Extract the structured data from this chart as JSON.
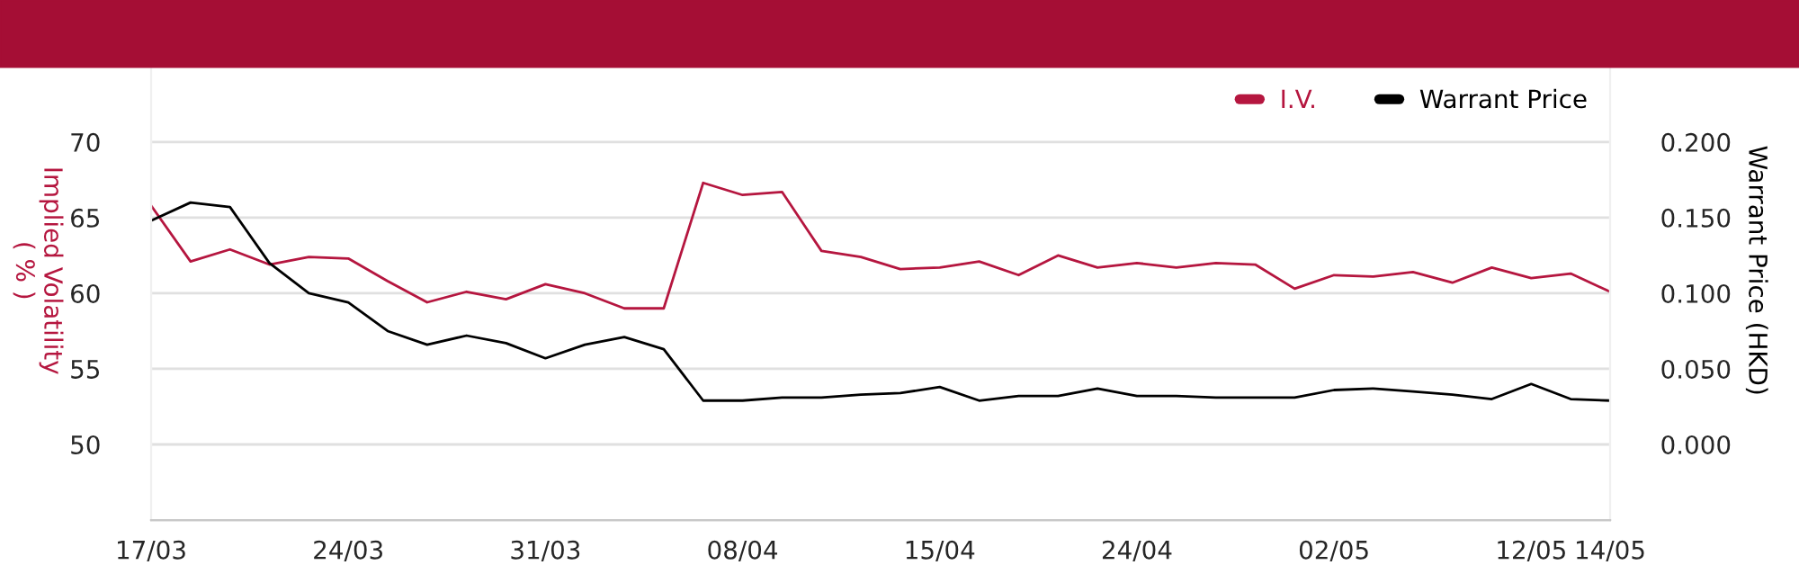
{
  "chart_data": {
    "type": "line",
    "categories": [
      "17/03",
      null,
      null,
      null,
      null,
      "24/03",
      null,
      null,
      null,
      null,
      "31/03",
      null,
      null,
      null,
      null,
      "08/04",
      null,
      null,
      null,
      null,
      "15/04",
      null,
      null,
      null,
      null,
      "24/04",
      null,
      null,
      null,
      null,
      "02/05",
      null,
      null,
      null,
      null,
      "12/05",
      null,
      "14/05"
    ],
    "series": [
      {
        "name": "I.V.",
        "color": "#b5163f",
        "values": [
          65.8,
          62.1,
          62.9,
          61.9,
          62.4,
          62.3,
          60.8,
          59.4,
          60.1,
          59.6,
          60.6,
          60.0,
          59.0,
          59.0,
          67.3,
          66.5,
          66.7,
          62.8,
          62.4,
          61.6,
          61.7,
          62.1,
          61.2,
          62.5,
          61.7,
          62.0,
          61.7,
          62.0,
          61.9,
          60.3,
          61.2,
          61.1,
          61.4,
          60.7,
          61.7,
          61.0,
          61.3,
          60.1
        ]
      },
      {
        "name": "Warrant Price",
        "color": "#000000",
        "axis": "y2",
        "values": [
          0.148,
          0.16,
          0.157,
          0.12,
          0.1,
          0.094,
          0.075,
          0.066,
          0.072,
          0.067,
          0.057,
          0.066,
          0.071,
          0.063,
          0.029,
          0.029,
          0.031,
          0.031,
          0.033,
          0.034,
          0.038,
          0.029,
          0.032,
          0.032,
          0.037,
          0.032,
          0.032,
          0.031,
          0.031,
          0.031,
          0.036,
          0.037,
          0.035,
          0.033,
          0.03,
          0.04,
          0.03,
          0.029
        ]
      }
    ],
    "ylabel": "Implied Volatility\n( % )",
    "y2label": "Warrant Price (HKD)",
    "ylim": [
      45,
      75
    ],
    "yticks": [
      50,
      55,
      60,
      65,
      70
    ],
    "y2lim": [
      -0.05,
      0.25
    ],
    "y2ticks": [
      {
        "value": 0,
        "label": "0.000"
      },
      {
        "value": 0.05,
        "label": "0.050"
      },
      {
        "value": 0.1,
        "label": "0.100"
      },
      {
        "value": 0.15,
        "label": "0.150"
      },
      {
        "value": 0.2,
        "label": "0.200"
      }
    ],
    "grid": "y",
    "legend": "top right",
    "line_style": "solid",
    "marker": "none"
  }
}
